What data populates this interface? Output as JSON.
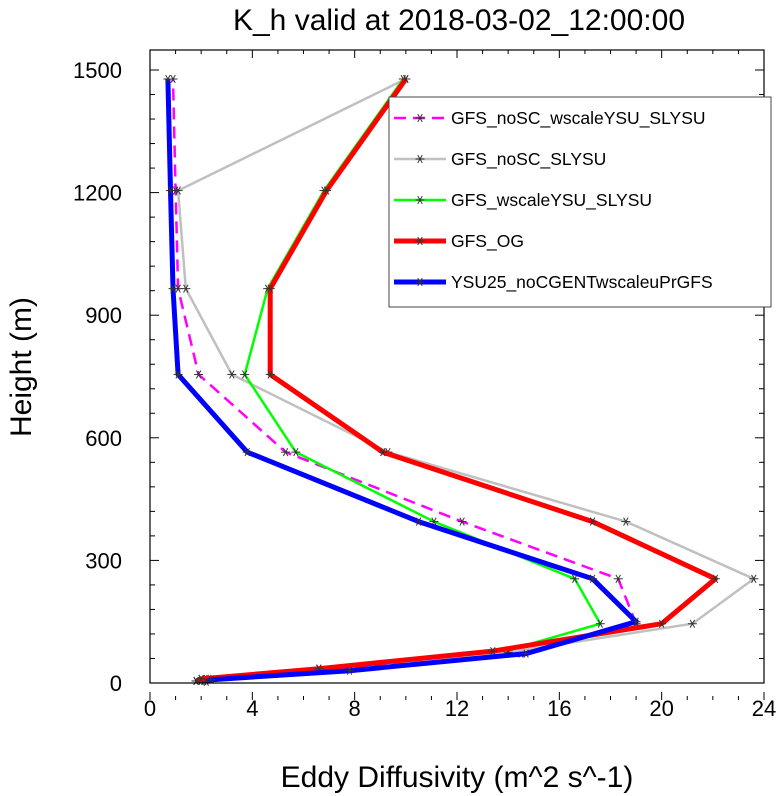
{
  "chart_data": {
    "type": "line",
    "title": "K_h valid at 2018-03-02_12:00:00",
    "xlabel": "Eddy Diffusivity (m^2 s^-1)",
    "ylabel": "Height (m)",
    "xlim": [
      0,
      24
    ],
    "ylim": [
      0,
      1500
    ],
    "xticks": [
      0,
      4,
      8,
      12,
      16,
      20,
      24
    ],
    "yticks": [
      0,
      300,
      600,
      900,
      1200,
      1500
    ],
    "xtick_labels": [
      "0",
      "4",
      "8",
      "12",
      "16",
      "20",
      "24"
    ],
    "ytick_labels": [
      "0",
      "300",
      "600",
      "900",
      "1200",
      "1500"
    ],
    "grid": false,
    "legend_position": "top-right",
    "marker": "asterisk",
    "series": [
      {
        "name": "GFS_noSC_wscaleYSU_SLYSU",
        "color": "#ff00ff",
        "dash": "dashed",
        "width": 2.5,
        "x": [
          2.1,
          2.3,
          6.8,
          14.5,
          19.0,
          18.3,
          12.2,
          5.3,
          1.9,
          1.1,
          1.0,
          0.9
        ],
        "y": [
          5,
          10,
          30,
          72,
          145,
          255,
          395,
          565,
          755,
          965,
          1205,
          1478
        ]
      },
      {
        "name": "GFS_noSC_SLYSU",
        "color": "#c0c0c0",
        "dash": "solid",
        "width": 2.5,
        "x": [
          1.8,
          2.0,
          6.6,
          14.0,
          21.2,
          23.6,
          18.6,
          9.3,
          3.2,
          1.4,
          1.1,
          10.0
        ],
        "y": [
          5,
          10,
          35,
          75,
          145,
          255,
          395,
          565,
          755,
          965,
          1205,
          1478
        ]
      },
      {
        "name": "GFS_wscaleYSU_SLYSU",
        "color": "#00ff00",
        "dash": "solid",
        "width": 2.5,
        "x": [
          2.0,
          2.2,
          6.6,
          14.0,
          17.6,
          16.6,
          11.1,
          5.7,
          3.7,
          4.6,
          6.8,
          9.9
        ],
        "y": [
          5,
          10,
          35,
          80,
          145,
          255,
          395,
          565,
          755,
          965,
          1205,
          1478
        ]
      },
      {
        "name": "GFS_OG",
        "color": "#ff0000",
        "dash": "solid",
        "width": 5,
        "x": [
          1.8,
          2.0,
          6.6,
          13.4,
          20.0,
          22.1,
          17.3,
          9.1,
          4.7,
          4.7,
          6.9,
          10.0
        ],
        "y": [
          5,
          10,
          35,
          78,
          145,
          255,
          395,
          565,
          755,
          965,
          1205,
          1478
        ]
      },
      {
        "name": "YSU25_noCGENTwscaleuPrGFS",
        "color": "#0000ff",
        "dash": "solid",
        "width": 5,
        "x": [
          2.2,
          2.4,
          7.8,
          14.7,
          19.0,
          17.3,
          10.5,
          3.8,
          1.1,
          0.9,
          0.8,
          0.7
        ],
        "y": [
          3,
          8,
          30,
          72,
          150,
          255,
          395,
          565,
          755,
          965,
          1205,
          1478
        ]
      }
    ]
  }
}
